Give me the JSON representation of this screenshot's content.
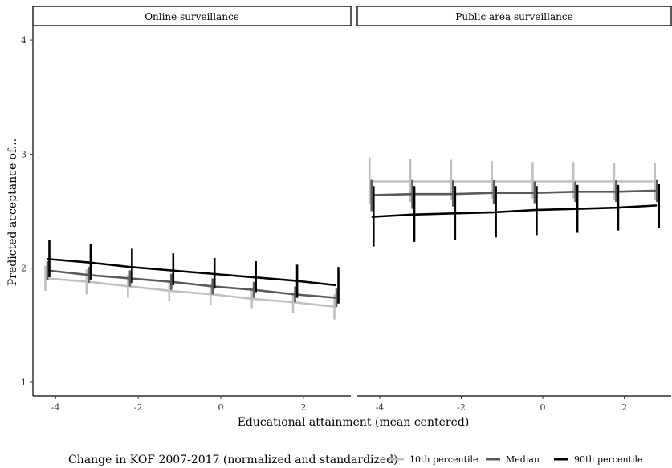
{
  "chart_data": {
    "type": "line",
    "ylabel": "Predicted acceptance of...",
    "xlabel": "Educational attainment (mean centered)",
    "ylim": [
      0.88,
      4.12
    ],
    "xlim": [
      -4.55,
      3.15
    ],
    "xticks": [
      -4,
      -2,
      0,
      2
    ],
    "yticks": [
      1,
      2,
      3,
      4
    ],
    "grid": false,
    "x": [
      -4.2,
      -3.2,
      -2.2,
      -1.2,
      -0.2,
      0.8,
      1.8,
      2.8
    ],
    "legend": {
      "title": "Change in KOF 2007-2017 (normalized and standardized)",
      "placement": "bottom"
    },
    "series_styles": [
      {
        "name": "10th percentile",
        "color": "#c0c0c0"
      },
      {
        "name": "Median",
        "color": "#5a5a5a"
      },
      {
        "name": "90th percentile",
        "color": "#000000"
      }
    ],
    "panels": [
      {
        "title": "Online surveillance",
        "series": [
          {
            "name": "10th percentile",
            "values": [
              1.91,
              1.88,
              1.84,
              1.8,
              1.77,
              1.73,
              1.7,
              1.66
            ],
            "lower": [
              1.8,
              1.77,
              1.74,
              1.71,
              1.68,
              1.65,
              1.61,
              1.55
            ],
            "upper": [
              2.02,
              1.99,
              1.94,
              1.89,
              1.86,
              1.81,
              1.79,
              1.77
            ]
          },
          {
            "name": "Median",
            "values": [
              1.98,
              1.94,
              1.91,
              1.88,
              1.84,
              1.81,
              1.77,
              1.74
            ],
            "lower": [
              1.9,
              1.87,
              1.84,
              1.81,
              1.77,
              1.74,
              1.7,
              1.66
            ],
            "upper": [
              2.06,
              2.01,
              1.98,
              1.95,
              1.91,
              1.88,
              1.84,
              1.82
            ]
          },
          {
            "name": "90th percentile",
            "values": [
              2.08,
              2.05,
              2.01,
              1.98,
              1.95,
              1.92,
              1.89,
              1.85
            ],
            "lower": [
              1.92,
              1.9,
              1.87,
              1.85,
              1.82,
              1.79,
              1.74,
              1.69
            ],
            "upper": [
              2.25,
              2.21,
              2.17,
              2.13,
              2.09,
              2.06,
              2.03,
              2.01
            ]
          }
        ]
      },
      {
        "title": "Public area surveillance",
        "series": [
          {
            "name": "10th percentile",
            "values": [
              2.76,
              2.76,
              2.76,
              2.76,
              2.76,
              2.76,
              2.76,
              2.76
            ],
            "lower": [
              2.56,
              2.58,
              2.6,
              2.61,
              2.61,
              2.61,
              2.6,
              2.6
            ],
            "upper": [
              2.97,
              2.96,
              2.95,
              2.94,
              2.93,
              2.93,
              2.92,
              2.92
            ]
          },
          {
            "name": "Median",
            "values": [
              2.64,
              2.65,
              2.65,
              2.66,
              2.66,
              2.67,
              2.67,
              2.68
            ],
            "lower": [
              2.5,
              2.52,
              2.54,
              2.56,
              2.57,
              2.58,
              2.58,
              2.58
            ],
            "upper": [
              2.78,
              2.78,
              2.77,
              2.77,
              2.76,
              2.76,
              2.77,
              2.78
            ]
          },
          {
            "name": "90th percentile",
            "values": [
              2.45,
              2.47,
              2.48,
              2.49,
              2.51,
              2.52,
              2.53,
              2.55
            ],
            "lower": [
              2.19,
              2.23,
              2.25,
              2.27,
              2.29,
              2.31,
              2.33,
              2.35
            ],
            "upper": [
              2.72,
              2.72,
              2.72,
              2.72,
              2.72,
              2.73,
              2.73,
              2.74
            ]
          }
        ]
      }
    ]
  }
}
